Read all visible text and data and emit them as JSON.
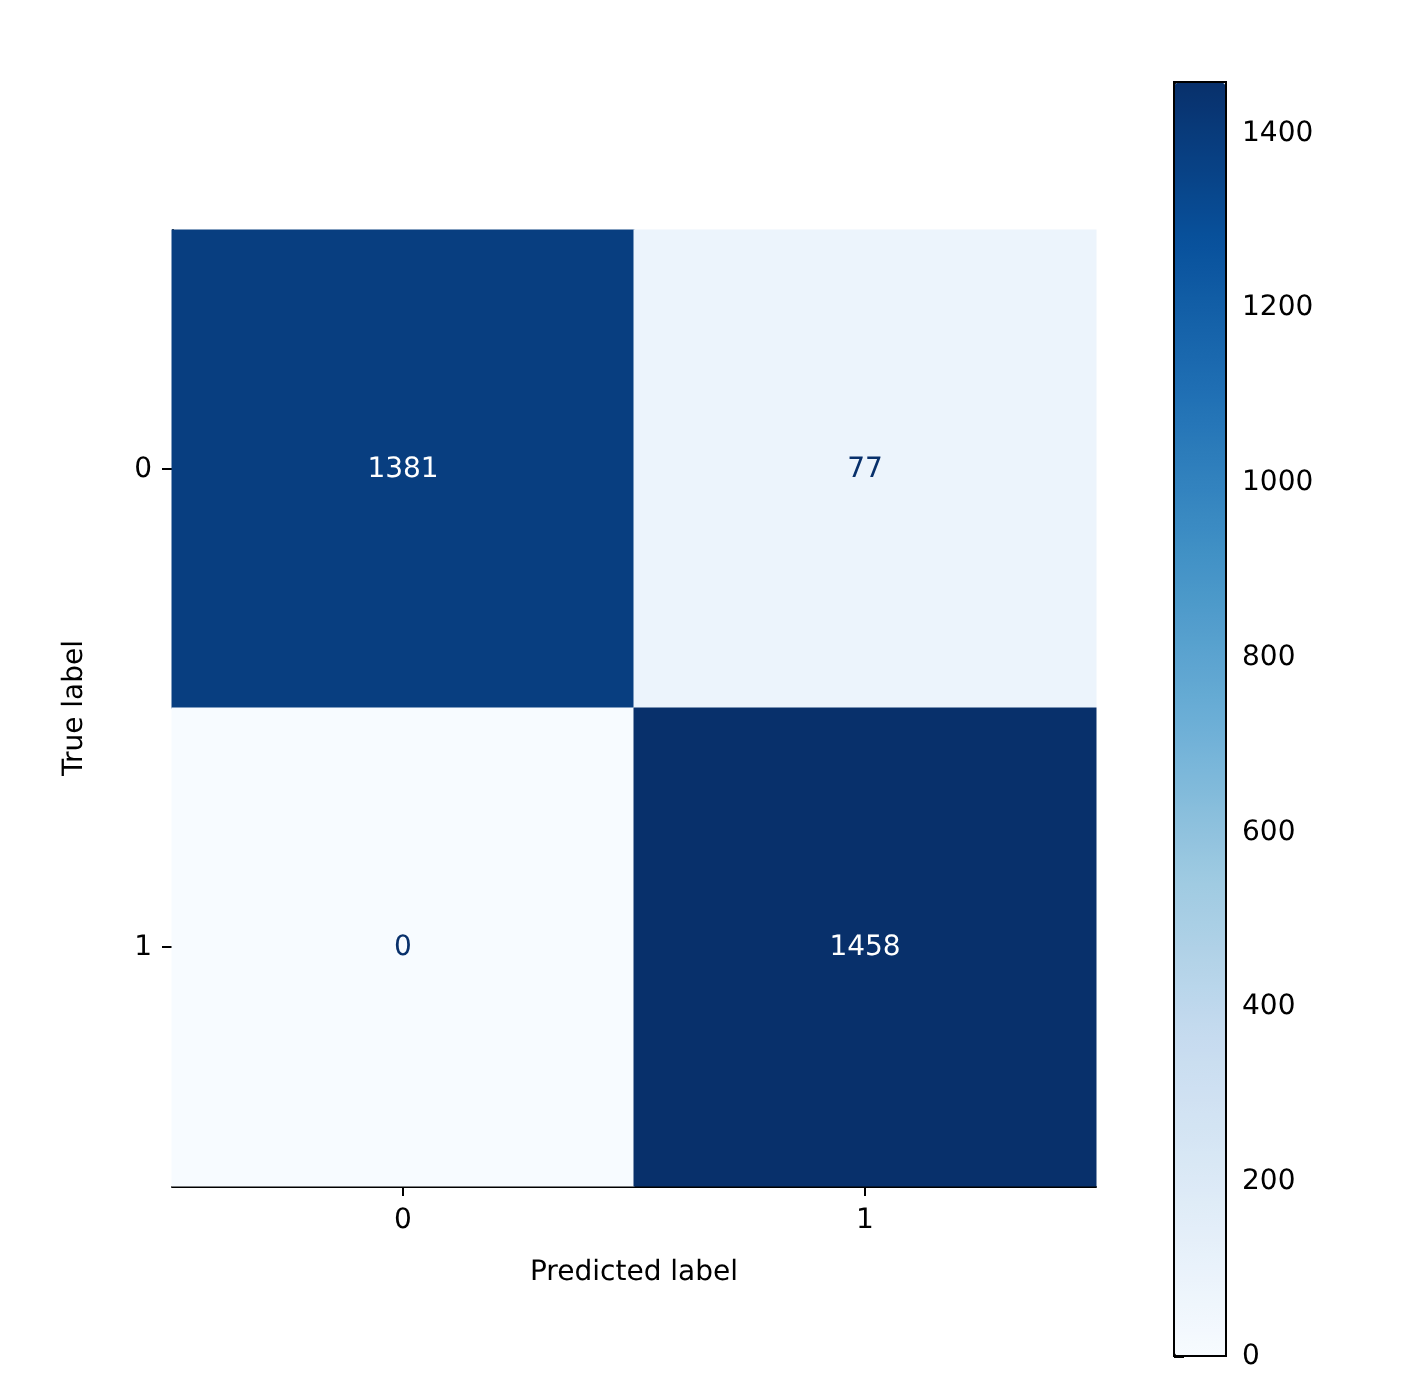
{
  "chart_data": {
    "type": "heatmap",
    "xlabel": "Predicted label",
    "ylabel": "True label",
    "categories": [
      "0",
      "1"
    ],
    "y_categories": [
      "0",
      "1"
    ],
    "cells": [
      [
        1381,
        77
      ],
      [
        0,
        1458
      ]
    ],
    "clim": [
      0,
      1458
    ],
    "cticks": [
      0,
      200,
      400,
      600,
      800,
      1000,
      1200,
      1400
    ],
    "data_labels": true,
    "grid": false
  }
}
